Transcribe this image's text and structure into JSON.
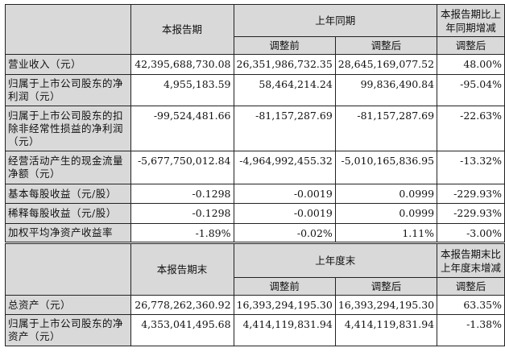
{
  "table1": {
    "header": {
      "current": "本报告期",
      "prior_group": "上年同期",
      "change": "本报告期比上年同期增减",
      "before": "调整前",
      "after": "调整后",
      "change_sub": "调整后"
    },
    "rows": [
      {
        "label": "营业收入（元）",
        "current": "42,395,688,730.08",
        "before": "26,351,986,732.35",
        "after": "28,645,169,077.52",
        "change": "48.00%"
      },
      {
        "label": "归属于上市公司股东的净利润（元）",
        "current": "4,955,183.59",
        "before": "58,464,214.24",
        "after": "99,836,490.84",
        "change": "-95.04%"
      },
      {
        "label": "归属于上市公司股东的扣除非经常性损益的净利润（元）",
        "current": "-99,524,481.66",
        "before": "-81,157,287.69",
        "after": "-81,157,287.69",
        "change": "-22.63%"
      },
      {
        "label": "经营活动产生的现金流量净额（元）",
        "current": "-5,677,750,012.84",
        "before": "-4,964,992,455.32",
        "after": "-5,010,165,836.95",
        "change": "-13.32%"
      },
      {
        "label": "基本每股收益（元/股）",
        "current": "-0.1298",
        "before": "-0.0019",
        "after": "0.0999",
        "change": "-229.93%"
      },
      {
        "label": "稀释每股收益（元/股）",
        "current": "-0.1298",
        "before": "-0.0019",
        "after": "0.0999",
        "change": "-229.93%"
      },
      {
        "label": "加权平均净资产收益率",
        "current": "-1.89%",
        "before": "-0.02%",
        "after": "1.11%",
        "change": "-3.00%"
      }
    ]
  },
  "table2": {
    "header": {
      "current": "本报告期末",
      "prior_group": "上年度末",
      "change": "本报告期末比上年度末增减",
      "before": "调整前",
      "after": "调整后",
      "change_sub": "调整后"
    },
    "rows": [
      {
        "label": "总资产（元）",
        "current": "26,778,262,360.92",
        "before": "16,393,294,195.30",
        "after": "16,393,294,195.30",
        "change": "63.35%"
      },
      {
        "label": "归属于上市公司股东的净资产（元）",
        "current": "4,353,041,495.68",
        "before": "4,414,119,831.94",
        "after": "4,414,119,831.94",
        "change": "-1.38%"
      }
    ]
  }
}
